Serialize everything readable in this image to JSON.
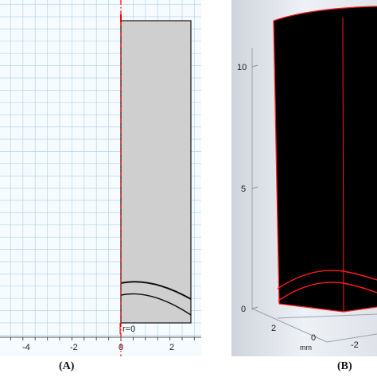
{
  "panel_a": {
    "x_ticks": [
      "-4",
      "-2",
      "0",
      "2"
    ],
    "axis_label": "r=0",
    "caption": "(A)"
  },
  "panel_b": {
    "y_ticks": [
      "10",
      "5",
      "0"
    ],
    "bottom_ticks": [
      "2",
      "0",
      "-2"
    ],
    "unit_label": "mm",
    "caption": "(B)"
  },
  "colors": {
    "grid": "#b7d3ea",
    "domain_fill": "#cfcfcf",
    "axis_line": "#ff0000",
    "block_3d": "#000000",
    "edge_3d": "#ff1a1a"
  }
}
